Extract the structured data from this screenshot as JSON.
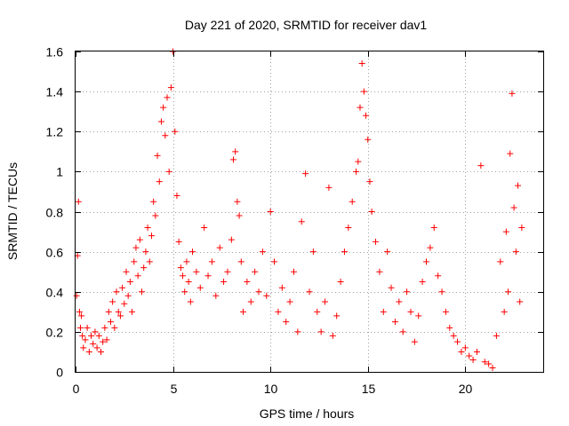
{
  "chart_data": {
    "type": "scatter",
    "title": "Day 221 of 2020, SRMTID for receiver dav1",
    "xlabel": "GPS time / hours",
    "ylabel": "SRMTID / TECUs",
    "xlim": [
      0,
      24
    ],
    "ylim": [
      0,
      1.6
    ],
    "grid": true,
    "marker": "+",
    "color": "#ff0000",
    "xticks": [
      0,
      5,
      10,
      15,
      20
    ],
    "xtick_labels": [
      "0",
      "5",
      "10",
      "15",
      "20"
    ],
    "yticks": [
      0,
      0.2,
      0.4,
      0.6,
      0.8,
      1.0,
      1.2,
      1.4,
      1.6
    ],
    "ytick_labels": [
      "0",
      "0.2",
      "0.4",
      "0.6",
      "0.8",
      "1",
      "1.2",
      "1.4",
      "1.6"
    ],
    "series": [
      {
        "name": "dav1",
        "x": [
          0.05,
          0.1,
          0.15,
          0.2,
          0.25,
          0.3,
          0.35,
          0.4,
          0.5,
          0.6,
          0.7,
          0.8,
          0.9,
          1.0,
          1.1,
          1.2,
          1.3,
          1.4,
          1.5,
          1.6,
          1.7,
          1.8,
          1.9,
          2.0,
          2.1,
          2.2,
          2.3,
          2.4,
          2.5,
          2.6,
          2.7,
          2.8,
          2.9,
          3.0,
          3.1,
          3.2,
          3.3,
          3.4,
          3.5,
          3.6,
          3.7,
          3.8,
          3.9,
          4.0,
          4.1,
          4.2,
          4.3,
          4.4,
          4.5,
          4.6,
          4.7,
          4.8,
          4.9,
          5.0,
          5.1,
          5.2,
          5.3,
          5.4,
          5.5,
          5.6,
          5.7,
          5.8,
          5.9,
          6.0,
          6.2,
          6.4,
          6.6,
          6.8,
          7.0,
          7.2,
          7.4,
          7.6,
          7.8,
          8.0,
          8.1,
          8.2,
          8.3,
          8.4,
          8.5,
          8.6,
          8.8,
          9.0,
          9.2,
          9.4,
          9.6,
          9.8,
          10.0,
          10.2,
          10.4,
          10.6,
          10.8,
          11.0,
          11.2,
          11.4,
          11.6,
          11.8,
          12.0,
          12.2,
          12.4,
          12.6,
          12.8,
          13.0,
          13.2,
          13.4,
          13.6,
          13.8,
          14.0,
          14.2,
          14.4,
          14.5,
          14.6,
          14.7,
          14.8,
          14.9,
          15.0,
          15.1,
          15.2,
          15.4,
          15.6,
          15.8,
          16.0,
          16.2,
          16.4,
          16.6,
          16.8,
          17.0,
          17.2,
          17.4,
          17.6,
          17.8,
          18.0,
          18.2,
          18.4,
          18.6,
          18.8,
          19.0,
          19.2,
          19.4,
          19.6,
          19.8,
          20.0,
          20.2,
          20.4,
          20.6,
          20.8,
          21.0,
          21.2,
          21.4,
          21.6,
          21.8,
          22.0,
          22.1,
          22.2,
          22.3,
          22.4,
          22.5,
          22.6,
          22.7,
          22.8,
          22.9
        ],
        "y": [
          0.38,
          0.58,
          0.85,
          0.3,
          0.22,
          0.28,
          0.18,
          0.12,
          0.16,
          0.22,
          0.1,
          0.18,
          0.14,
          0.2,
          0.12,
          0.18,
          0.1,
          0.15,
          0.22,
          0.16,
          0.3,
          0.25,
          0.35,
          0.22,
          0.4,
          0.3,
          0.28,
          0.42,
          0.34,
          0.5,
          0.38,
          0.45,
          0.3,
          0.55,
          0.62,
          0.48,
          0.66,
          0.4,
          0.52,
          0.6,
          0.72,
          0.55,
          0.68,
          0.85,
          0.78,
          1.08,
          0.95,
          1.25,
          1.32,
          1.18,
          1.37,
          1.0,
          1.42,
          1.6,
          1.2,
          0.88,
          0.65,
          0.52,
          0.48,
          0.4,
          0.55,
          0.45,
          0.35,
          0.6,
          0.5,
          0.42,
          0.72,
          0.48,
          0.55,
          0.38,
          0.62,
          0.45,
          0.5,
          0.66,
          1.06,
          1.1,
          0.85,
          0.78,
          0.55,
          0.3,
          0.45,
          0.35,
          0.5,
          0.4,
          0.6,
          0.38,
          0.8,
          0.55,
          0.3,
          0.42,
          0.25,
          0.35,
          0.5,
          0.2,
          0.75,
          0.99,
          0.4,
          0.6,
          0.3,
          0.2,
          0.35,
          0.92,
          0.18,
          0.28,
          0.45,
          0.6,
          0.72,
          0.85,
          1.0,
          1.05,
          1.32,
          1.54,
          1.4,
          1.28,
          1.16,
          0.95,
          0.8,
          0.65,
          0.5,
          0.3,
          0.6,
          0.42,
          0.25,
          0.35,
          0.2,
          0.4,
          0.3,
          0.15,
          0.28,
          0.45,
          0.55,
          0.62,
          0.72,
          0.48,
          0.4,
          0.3,
          0.22,
          0.18,
          0.15,
          0.1,
          0.12,
          0.08,
          0.06,
          0.1,
          1.03,
          0.05,
          0.04,
          0.02,
          0.18,
          0.55,
          0.3,
          0.7,
          0.4,
          1.09,
          1.39,
          0.82,
          0.6,
          0.93,
          0.35,
          0.72
        ]
      }
    ]
  }
}
